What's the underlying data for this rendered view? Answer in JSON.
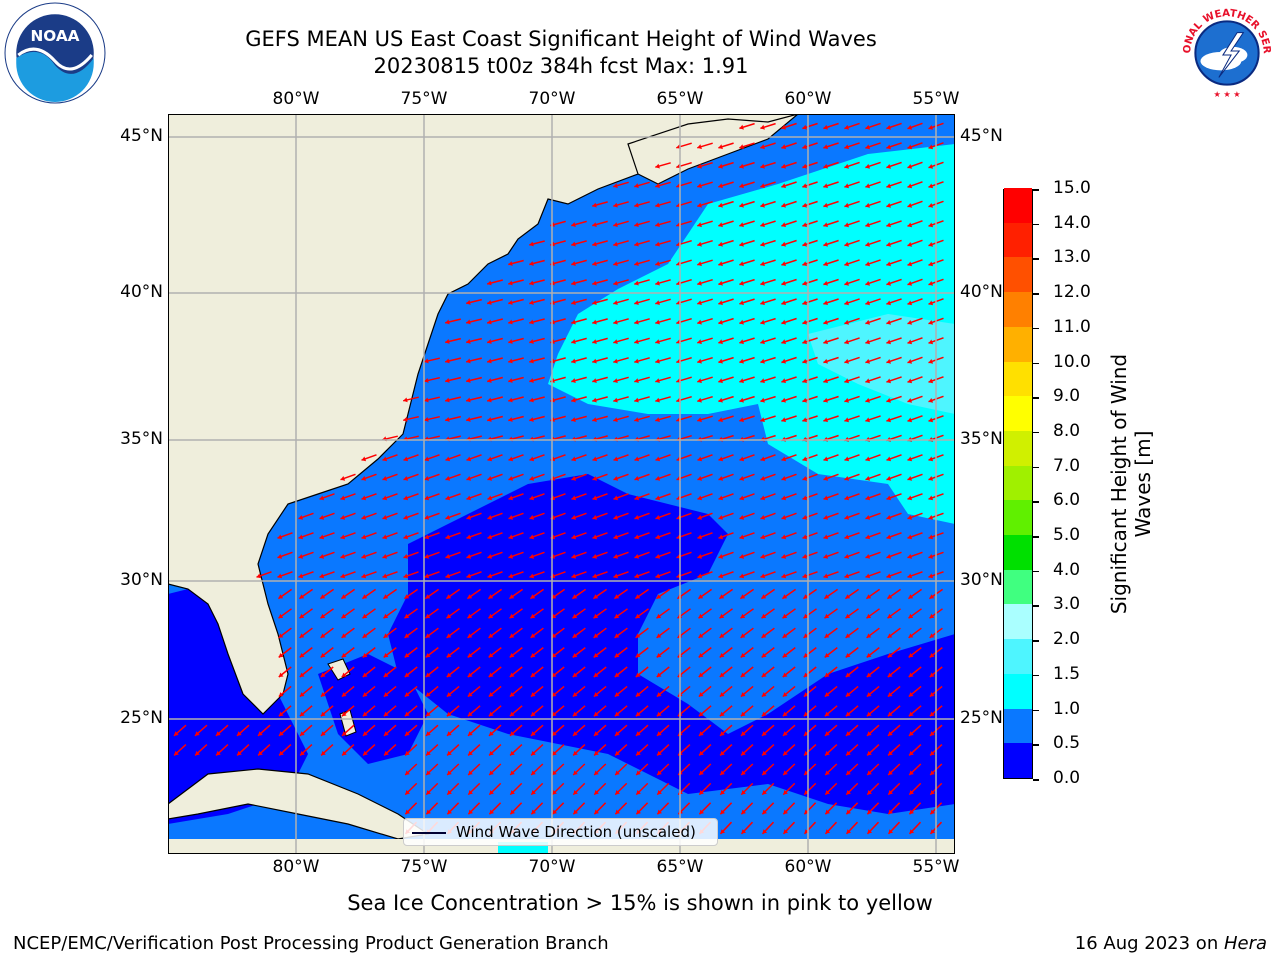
{
  "title_line1": "GEFS MEAN US East Coast Significant Height of Wind Waves",
  "title_line2": "20230815 t00z 384h fcst   Max: 1.91",
  "lon_ticks": [
    "80°W",
    "75°W",
    "70°W",
    "65°W",
    "60°W",
    "55°W"
  ],
  "lat_ticks": [
    "45°N",
    "40°N",
    "35°N",
    "30°N",
    "25°N"
  ],
  "legend_label": "Wind Wave Direction (unscaled)",
  "colorbar": {
    "title": "Significant Height of Wind Waves [m]",
    "labels": [
      "15.0",
      "14.0",
      "13.0",
      "12.0",
      "11.0",
      "10.0",
      "9.0",
      "8.0",
      "7.0",
      "6.0",
      "5.0",
      "4.0",
      "3.0",
      "2.0",
      "1.5",
      "1.0",
      "0.5",
      "0.0"
    ],
    "colors_bottom_to_top": [
      "#0000ff",
      "#0a78ff",
      "#00ffff",
      "#4ef5ff",
      "#aaffff",
      "#40ff80",
      "#00e000",
      "#60f000",
      "#a0f000",
      "#d0f000",
      "#ffff00",
      "#ffe000",
      "#ffb000",
      "#ff8000",
      "#ff5000",
      "#ff2000",
      "#ff0000"
    ]
  },
  "map_colors": {
    "land": "#efeedc",
    "very_low": "#0000ff",
    "low": "#0a78ff",
    "moderate": "#00ffff",
    "arrow": "#ff0000",
    "grid": "#b0b0b0"
  },
  "subtitle": "Sea Ice Concentration > 15% is shown in pink to yellow",
  "footer_left": "NCEP/EMC/Verification Post Processing Product Generation Branch",
  "footer_right_date": "16 Aug 2023 on ",
  "footer_right_host": "Hera",
  "logos": {
    "left": "noaa-logo",
    "right": "nws-logo",
    "noaa_text": "NOAA",
    "nws_text": "NATIONAL WEATHER SERVICE"
  }
}
